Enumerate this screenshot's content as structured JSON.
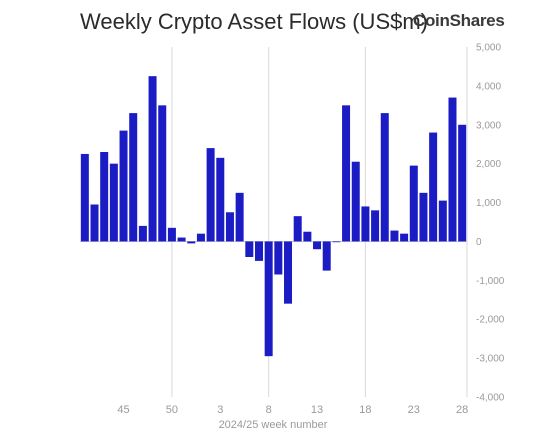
{
  "header": {
    "title": "Weekly Crypto Asset Flows (US$m)",
    "brand": "CoinShares"
  },
  "colors": {
    "bar": "#1c1cc4",
    "grid": "#d9d9d9",
    "zero_line": "#cccccc",
    "tick_text": "#9a9a9a"
  },
  "chart_data": {
    "type": "bar",
    "title": "Weekly Crypto Asset Flows (US$m)",
    "xlabel": "2024/25 week number",
    "ylabel": "",
    "ylim": [
      -4000,
      5000
    ],
    "y_ticks": [
      "-4,000",
      "-3,000",
      "-2,000",
      "-1,000",
      "0",
      "1,000",
      "2,000",
      "3,000",
      "4,000",
      "5,000"
    ],
    "x_tick_labels": [
      {
        "week": 45,
        "label": "45"
      },
      {
        "week": 50,
        "label": "50"
      },
      {
        "week": 3,
        "label": "3"
      },
      {
        "week": 8,
        "label": "8"
      },
      {
        "week": 13,
        "label": "13"
      },
      {
        "week": 18,
        "label": "18"
      },
      {
        "week": 23,
        "label": "23"
      },
      {
        "week": 28,
        "label": "28"
      }
    ],
    "grid_weeks": [
      50,
      8,
      18
    ],
    "categories": [
      41,
      42,
      43,
      44,
      45,
      46,
      47,
      48,
      49,
      50,
      51,
      52,
      1,
      2,
      3,
      4,
      5,
      6,
      7,
      8,
      9,
      10,
      11,
      12,
      13,
      14,
      15,
      16,
      17,
      18,
      19,
      20,
      21,
      22,
      23,
      24,
      25,
      26,
      27,
      28
    ],
    "values": [
      2250,
      950,
      2300,
      2000,
      2850,
      3300,
      400,
      4250,
      3500,
      350,
      100,
      -50,
      200,
      2400,
      2150,
      750,
      1250,
      -400,
      -500,
      -2950,
      -850,
      -1600,
      650,
      250,
      -200,
      -750,
      -20,
      3500,
      2050,
      900,
      800,
      3300,
      280,
      200,
      1950,
      1250,
      2800,
      1050,
      3700,
      3000
    ],
    "grid": true,
    "y_axis_side": "right"
  }
}
